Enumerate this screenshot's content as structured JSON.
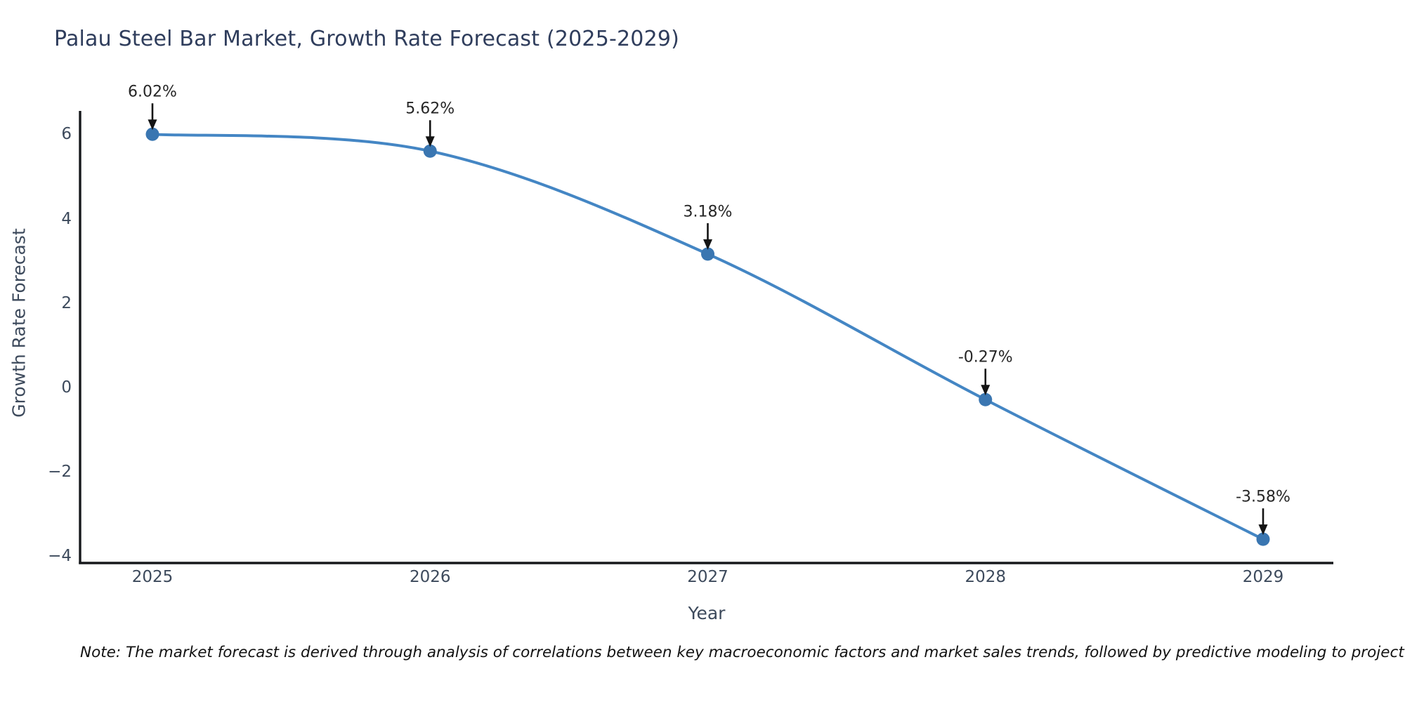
{
  "title": "Palau Steel Bar Market, Growth Rate Forecast (2025-2029)",
  "note": "Note: The market forecast is derived through analysis of correlations between key macroeconomic factors and market sales trends, followed by predictive modeling to project future sales",
  "chart_data": {
    "type": "line",
    "title": "Palau Steel Bar Market, Growth Rate Forecast (2025-2029)",
    "xlabel": "Year",
    "ylabel": "Growth Rate Forecast",
    "x": [
      2025,
      2026,
      2027,
      2028,
      2029
    ],
    "series": [
      {
        "name": "Growth Rate Forecast",
        "values": [
          6.02,
          5.62,
          3.18,
          -0.27,
          -3.58
        ]
      }
    ],
    "point_labels": [
      "6.02%",
      "5.62%",
      "3.18%",
      "-0.27%",
      "-3.58%"
    ],
    "xtick_labels": [
      "2025",
      "2026",
      "2027",
      "2028",
      "2029"
    ],
    "ytick_values": [
      6,
      4,
      2,
      0,
      -2,
      -4
    ],
    "ytick_labels": [
      "6",
      "4",
      "2",
      "0",
      "−2",
      "−4"
    ],
    "ylim": [
      -4.15,
      6.7
    ],
    "grid": false,
    "legend": false,
    "smooth": true,
    "colors": {
      "line": "#4486c4",
      "marker": "#3a76b1",
      "arrow": "#141414",
      "spine": "#17191c",
      "title_text": "#2f3d5c",
      "axis_text": "#3d4a5c",
      "annotation_text": "#262626"
    }
  }
}
